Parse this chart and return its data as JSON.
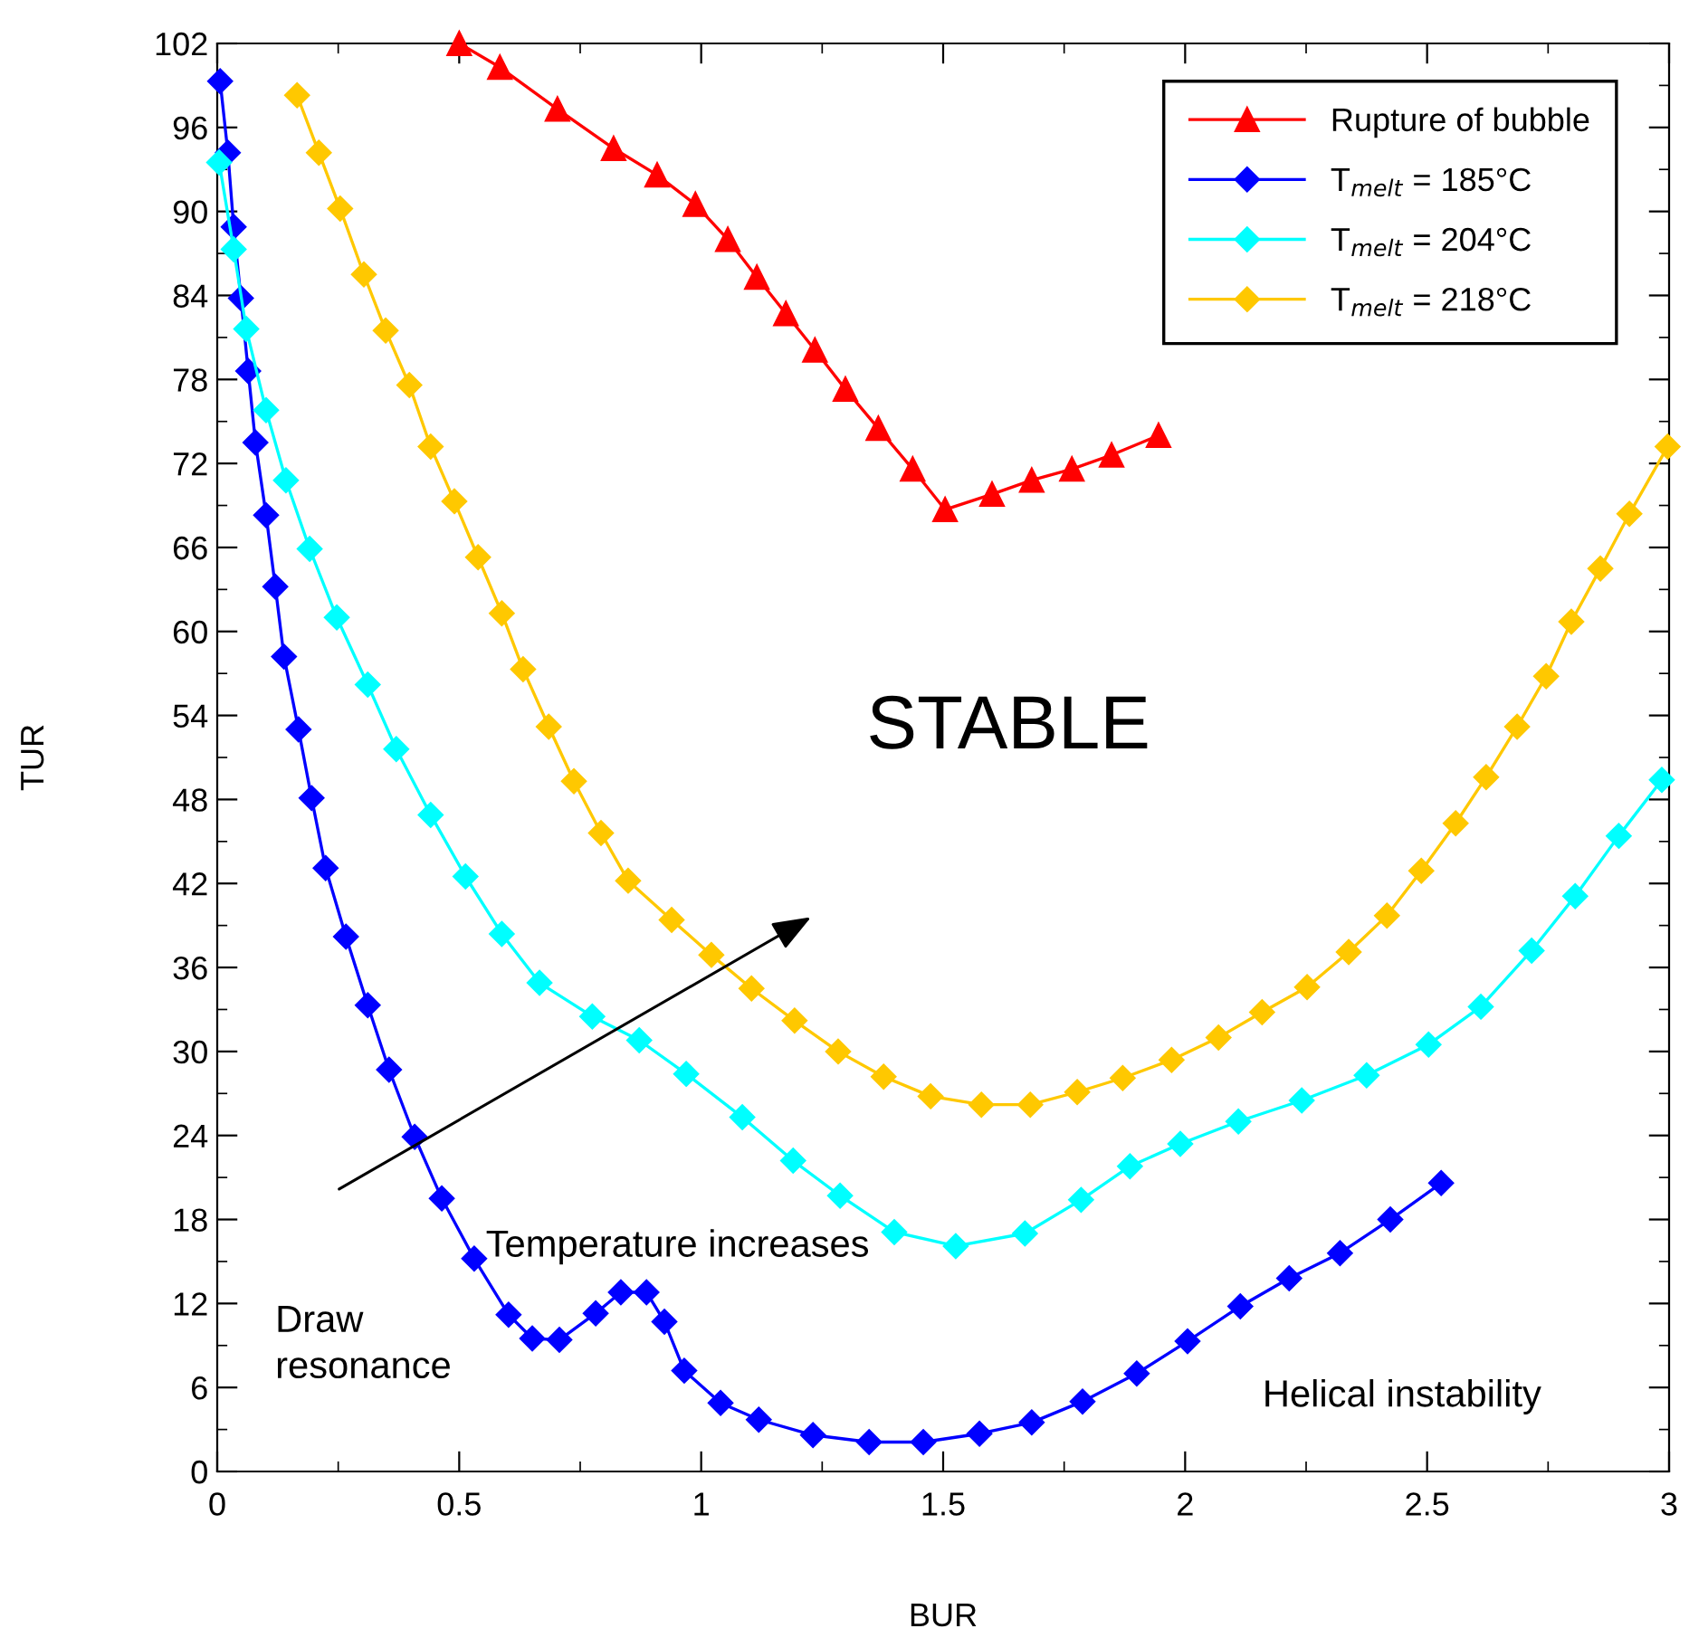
{
  "chart_data": {
    "type": "line",
    "xlabel": "BUR",
    "ylabel": "TUR",
    "xlim": [
      0,
      3
    ],
    "xticks": [
      0,
      0.5,
      1,
      1.5,
      2,
      2.5,
      3
    ],
    "ylim": [
      0,
      102
    ],
    "yticks": [
      0,
      6,
      12,
      18,
      24,
      30,
      36,
      42,
      48,
      54,
      60,
      66,
      72,
      78,
      84,
      90,
      96,
      102
    ],
    "grid": false,
    "legend": "top right",
    "annotations": [
      "STABLE",
      "Temperature increases",
      "Draw\nresonance",
      "Helical instability"
    ],
    "series": [
      {
        "name": "Rupture of bubble",
        "color": "#ff0000",
        "marker": "triangle",
        "x": [
          0.5,
          0.584,
          0.703,
          0.819,
          0.909,
          0.988,
          1.055,
          1.115,
          1.175,
          1.235,
          1.298,
          1.366,
          1.437,
          1.504,
          1.601,
          1.683,
          1.766,
          1.848,
          1.945
        ],
        "values": [
          102,
          100.3,
          97.3,
          94.5,
          92.6,
          90.5,
          88.0,
          85.3,
          82.7,
          80.1,
          77.3,
          74.5,
          71.6,
          68.7,
          69.8,
          70.8,
          71.6,
          72.6,
          74.0
        ]
      },
      {
        "name": "T$_{melt}$ = 185°C",
        "color": "#0000ff",
        "marker": "diamond",
        "x": [
          0.006,
          0.022,
          0.034,
          0.049,
          0.064,
          0.079,
          0.101,
          0.12,
          0.138,
          0.168,
          0.195,
          0.224,
          0.266,
          0.311,
          0.355,
          0.408,
          0.464,
          0.531,
          0.602,
          0.651,
          0.707,
          0.782,
          0.834,
          0.887,
          0.924,
          0.965,
          1.04,
          1.119,
          1.231,
          1.347,
          1.459,
          1.575,
          1.683,
          1.788,
          1.9,
          2.005,
          2.114,
          2.215,
          2.32,
          2.424,
          2.529
        ],
        "values": [
          99.3,
          94.2,
          88.9,
          83.8,
          78.6,
          73.5,
          68.3,
          63.2,
          58.2,
          53.0,
          48.1,
          43.1,
          38.2,
          33.3,
          28.7,
          23.9,
          19.5,
          15.2,
          11.2,
          9.5,
          9.4,
          11.3,
          12.8,
          12.8,
          10.7,
          7.2,
          4.9,
          3.7,
          2.6,
          2.1,
          2.1,
          2.7,
          3.5,
          5.0,
          7.0,
          9.3,
          11.8,
          13.8,
          15.6,
          18.0,
          20.6
        ]
      },
      {
        "name": "T$_{melt}$ = 204°C",
        "color": "#00ffff",
        "marker": "diamond",
        "x": [
          0.004,
          0.034,
          0.06,
          0.101,
          0.142,
          0.191,
          0.247,
          0.311,
          0.37,
          0.441,
          0.513,
          0.588,
          0.666,
          0.775,
          0.872,
          0.969,
          1.085,
          1.19,
          1.287,
          1.399,
          1.526,
          1.669,
          1.785,
          1.886,
          1.99,
          2.11,
          2.241,
          2.375,
          2.503,
          2.611,
          2.716,
          2.806,
          2.896,
          2.985
        ],
        "values": [
          93.5,
          87.3,
          81.6,
          75.8,
          70.8,
          65.9,
          61.0,
          56.2,
          51.6,
          46.9,
          42.5,
          38.4,
          34.9,
          32.5,
          30.8,
          28.4,
          25.3,
          22.2,
          19.7,
          17.1,
          16.1,
          17.0,
          19.4,
          21.8,
          23.4,
          25.0,
          26.5,
          28.3,
          30.5,
          33.2,
          37.2,
          41.1,
          45.4,
          49.4
        ]
      },
      {
        "name": "T$_{melt}$ = 218°C",
        "color": "#ffc800",
        "marker": "diamond",
        "x": [
          0.165,
          0.21,
          0.254,
          0.303,
          0.348,
          0.397,
          0.441,
          0.49,
          0.539,
          0.588,
          0.632,
          0.685,
          0.737,
          0.793,
          0.849,
          0.939,
          1.021,
          1.104,
          1.193,
          1.283,
          1.377,
          1.474,
          1.579,
          1.68,
          1.777,
          1.871,
          1.972,
          2.069,
          2.159,
          2.252,
          2.338,
          2.417,
          2.488,
          2.559,
          2.622,
          2.686,
          2.746,
          2.798,
          2.858,
          2.918,
          2.997
        ],
        "values": [
          98.3,
          94.2,
          90.2,
          85.5,
          81.5,
          77.6,
          73.2,
          69.3,
          65.3,
          61.3,
          57.3,
          53.2,
          49.3,
          45.6,
          42.2,
          39.4,
          36.9,
          34.5,
          32.2,
          30.0,
          28.2,
          26.8,
          26.2,
          26.2,
          27.1,
          28.1,
          29.4,
          31.0,
          32.8,
          34.6,
          37.1,
          39.7,
          42.9,
          46.3,
          49.6,
          53.2,
          56.8,
          60.7,
          64.5,
          68.4,
          73.2
        ]
      }
    ]
  }
}
